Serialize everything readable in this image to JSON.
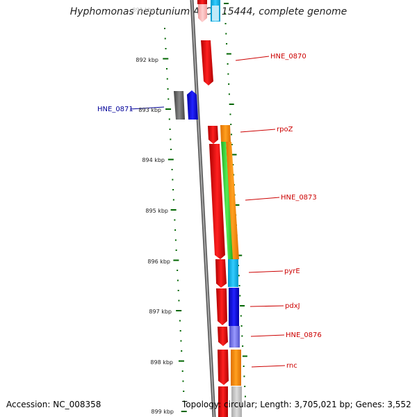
{
  "title": "Hyphomonas neptunium ATCC 15444, complete genome",
  "accession": "Accession: NC_008358",
  "summary": "Topology: circular; Length: 3,705,021 bp; Genes: 3,552",
  "top_faded_label": "891 kbp",
  "ruler_labels": [
    {
      "text": "892 kbp"
    },
    {
      "text": "893 kbp"
    },
    {
      "text": "894 kbp"
    },
    {
      "text": "895 kbp"
    },
    {
      "text": "896 kbp"
    },
    {
      "text": "897 kbp"
    },
    {
      "text": "898 kbp"
    },
    {
      "text": "899 kbp"
    }
  ],
  "gene_labels": [
    {
      "text": "HNE_0870",
      "color": "#cc0000"
    },
    {
      "text": "HNE_0871",
      "color": "#000099"
    },
    {
      "text": "rpoZ",
      "color": "#cc0000"
    },
    {
      "text": "HNE_0873",
      "color": "#cc0000"
    },
    {
      "text": "pyrE",
      "color": "#cc0000"
    },
    {
      "text": "pdxJ",
      "color": "#cc0000"
    },
    {
      "text": "HNE_0876",
      "color": "#cc0000"
    },
    {
      "text": "rnc",
      "color": "#cc0000"
    }
  ],
  "colors": {
    "cds_red": "#e00000",
    "cds_blue": "#0000ee",
    "cds_gray": "#666666",
    "orange": "#ff8800",
    "green": "#33cc33",
    "cyan": "#00bbee",
    "blue": "#0000ff",
    "purple": "#7777ee",
    "backbone": "#888888",
    "tick": "#006600"
  }
}
